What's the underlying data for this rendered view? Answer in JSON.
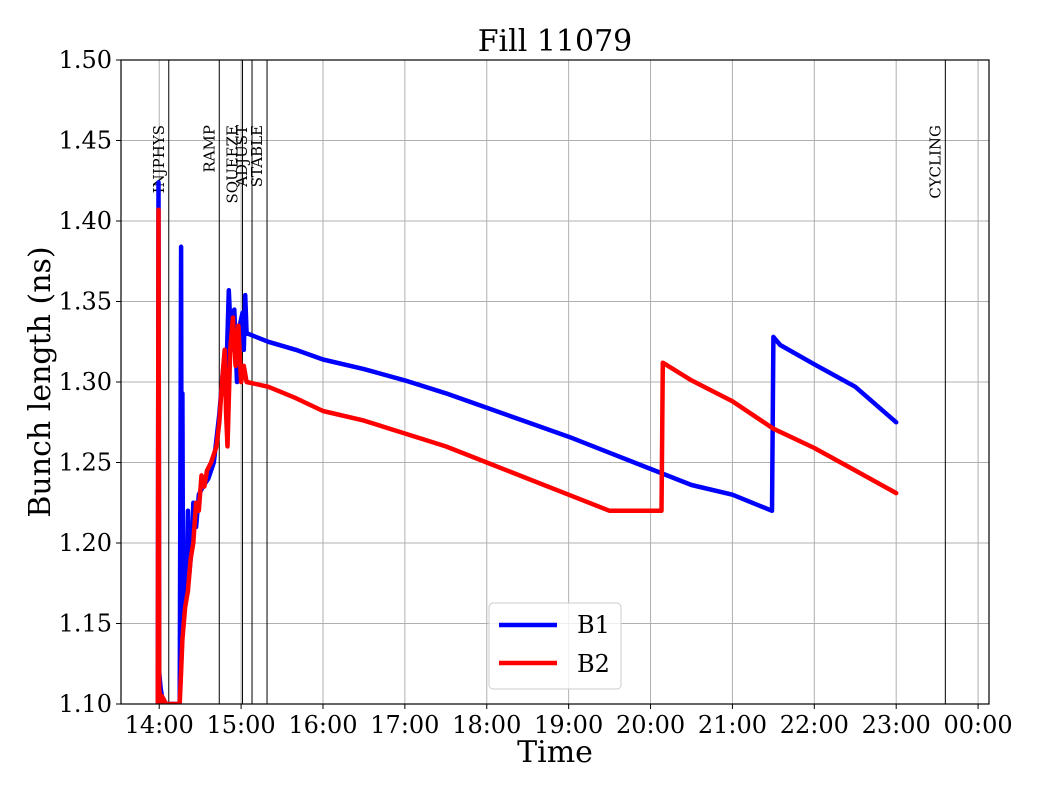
{
  "chart_data": {
    "type": "line",
    "title": "Fill 11079",
    "xlabel": "Time",
    "ylabel": "Bunch length (ns)",
    "xlim": [
      "13:32",
      "00:08"
    ],
    "ylim": [
      1.1,
      1.5
    ],
    "x_ticks": [
      "14:00",
      "15:00",
      "16:00",
      "17:00",
      "18:00",
      "19:00",
      "20:00",
      "21:00",
      "22:00",
      "23:00",
      "00:00"
    ],
    "y_ticks": [
      "1.10",
      "1.15",
      "1.20",
      "1.25",
      "1.30",
      "1.35",
      "1.40",
      "1.45",
      "1.50"
    ],
    "grid": true,
    "legend_position": "lower-center",
    "phases": [
      {
        "name": "INJPHYS",
        "time": "14:07"
      },
      {
        "name": "RAMP",
        "time": "14:44"
      },
      {
        "name": "SQUEEZE",
        "time": "15:01"
      },
      {
        "name": "ADJUST",
        "time": "15:08"
      },
      {
        "name": "STABLE",
        "time": "15:19"
      },
      {
        "name": "CYCLING",
        "time": "23:36"
      }
    ],
    "series": [
      {
        "name": "B1",
        "color": "#0000ff",
        "points": [
          [
            "13:59",
            1.1
          ],
          [
            "13:59.5",
            1.424
          ],
          [
            "14:00",
            1.12
          ],
          [
            "14:01",
            1.11
          ],
          [
            "14:02",
            1.105
          ],
          [
            "14:05",
            1.1
          ],
          [
            "14:15",
            1.1
          ],
          [
            "14:16",
            1.384
          ],
          [
            "14:16.5",
            1.13
          ],
          [
            "14:17",
            1.293
          ],
          [
            "14:17.5",
            1.15
          ],
          [
            "14:18",
            1.16
          ],
          [
            "14:20",
            1.17
          ],
          [
            "14:21",
            1.22
          ],
          [
            "14:22",
            1.18
          ],
          [
            "14:24",
            1.2
          ],
          [
            "14:25",
            1.225
          ],
          [
            "14:27",
            1.21
          ],
          [
            "14:29",
            1.23
          ],
          [
            "14:32",
            1.235
          ],
          [
            "14:36",
            1.24
          ],
          [
            "14:40",
            1.25
          ],
          [
            "14:44",
            1.28
          ],
          [
            "14:47",
            1.31
          ],
          [
            "14:49",
            1.3
          ],
          [
            "14:51",
            1.357
          ],
          [
            "14:53",
            1.32
          ],
          [
            "14:55",
            1.345
          ],
          [
            "14:57",
            1.3
          ],
          [
            "14:59",
            1.335
          ],
          [
            "15:01",
            1.343
          ],
          [
            "15:02",
            1.32
          ],
          [
            "15:03",
            1.354
          ],
          [
            "15:04",
            1.33
          ],
          [
            "15:05",
            1.33
          ],
          [
            "15:20",
            1.325
          ],
          [
            "15:40",
            1.32
          ],
          [
            "16:00",
            1.314
          ],
          [
            "16:30",
            1.308
          ],
          [
            "17:00",
            1.301
          ],
          [
            "17:30",
            1.293
          ],
          [
            "18:00",
            1.284
          ],
          [
            "18:30",
            1.275
          ],
          [
            "19:00",
            1.266
          ],
          [
            "19:30",
            1.256
          ],
          [
            "20:00",
            1.246
          ],
          [
            "20:30",
            1.236
          ],
          [
            "21:00",
            1.23
          ],
          [
            "21:29",
            1.22
          ],
          [
            "21:30",
            1.328
          ],
          [
            "21:35",
            1.323
          ],
          [
            "22:00",
            1.311
          ],
          [
            "22:30",
            1.297
          ],
          [
            "23:00",
            1.275
          ]
        ]
      },
      {
        "name": "B2",
        "color": "#ff0000",
        "points": [
          [
            "13:59",
            1.1
          ],
          [
            "13:59.5",
            1.407
          ],
          [
            "14:00",
            1.11
          ],
          [
            "14:01",
            1.1
          ],
          [
            "14:02",
            1.105
          ],
          [
            "14:05",
            1.1
          ],
          [
            "14:15",
            1.1
          ],
          [
            "14:16",
            1.12
          ],
          [
            "14:17",
            1.14
          ],
          [
            "14:19",
            1.16
          ],
          [
            "14:21",
            1.17
          ],
          [
            "14:23",
            1.19
          ],
          [
            "14:25",
            1.2
          ],
          [
            "14:27",
            1.225
          ],
          [
            "14:29",
            1.22
          ],
          [
            "14:31",
            1.242
          ],
          [
            "14:33",
            1.235
          ],
          [
            "14:35",
            1.245
          ],
          [
            "14:38",
            1.25
          ],
          [
            "14:42",
            1.26
          ],
          [
            "14:44",
            1.275
          ],
          [
            "14:46",
            1.3
          ],
          [
            "14:48",
            1.32
          ],
          [
            "14:49",
            1.28
          ],
          [
            "14:50",
            1.26
          ],
          [
            "14:52",
            1.32
          ],
          [
            "14:54",
            1.34
          ],
          [
            "14:56",
            1.31
          ],
          [
            "14:58",
            1.335
          ],
          [
            "15:00",
            1.3
          ],
          [
            "15:02",
            1.31
          ],
          [
            "15:04",
            1.3
          ],
          [
            "15:20",
            1.297
          ],
          [
            "15:40",
            1.29
          ],
          [
            "16:00",
            1.282
          ],
          [
            "16:30",
            1.276
          ],
          [
            "17:00",
            1.268
          ],
          [
            "17:30",
            1.26
          ],
          [
            "18:00",
            1.25
          ],
          [
            "18:30",
            1.24
          ],
          [
            "19:00",
            1.23
          ],
          [
            "19:30",
            1.22
          ],
          [
            "20:08",
            1.22
          ],
          [
            "20:09",
            1.312
          ],
          [
            "20:30",
            1.301
          ],
          [
            "21:00",
            1.288
          ],
          [
            "21:30",
            1.271
          ],
          [
            "22:00",
            1.259
          ],
          [
            "22:30",
            1.245
          ],
          [
            "23:00",
            1.231
          ]
        ]
      }
    ]
  }
}
